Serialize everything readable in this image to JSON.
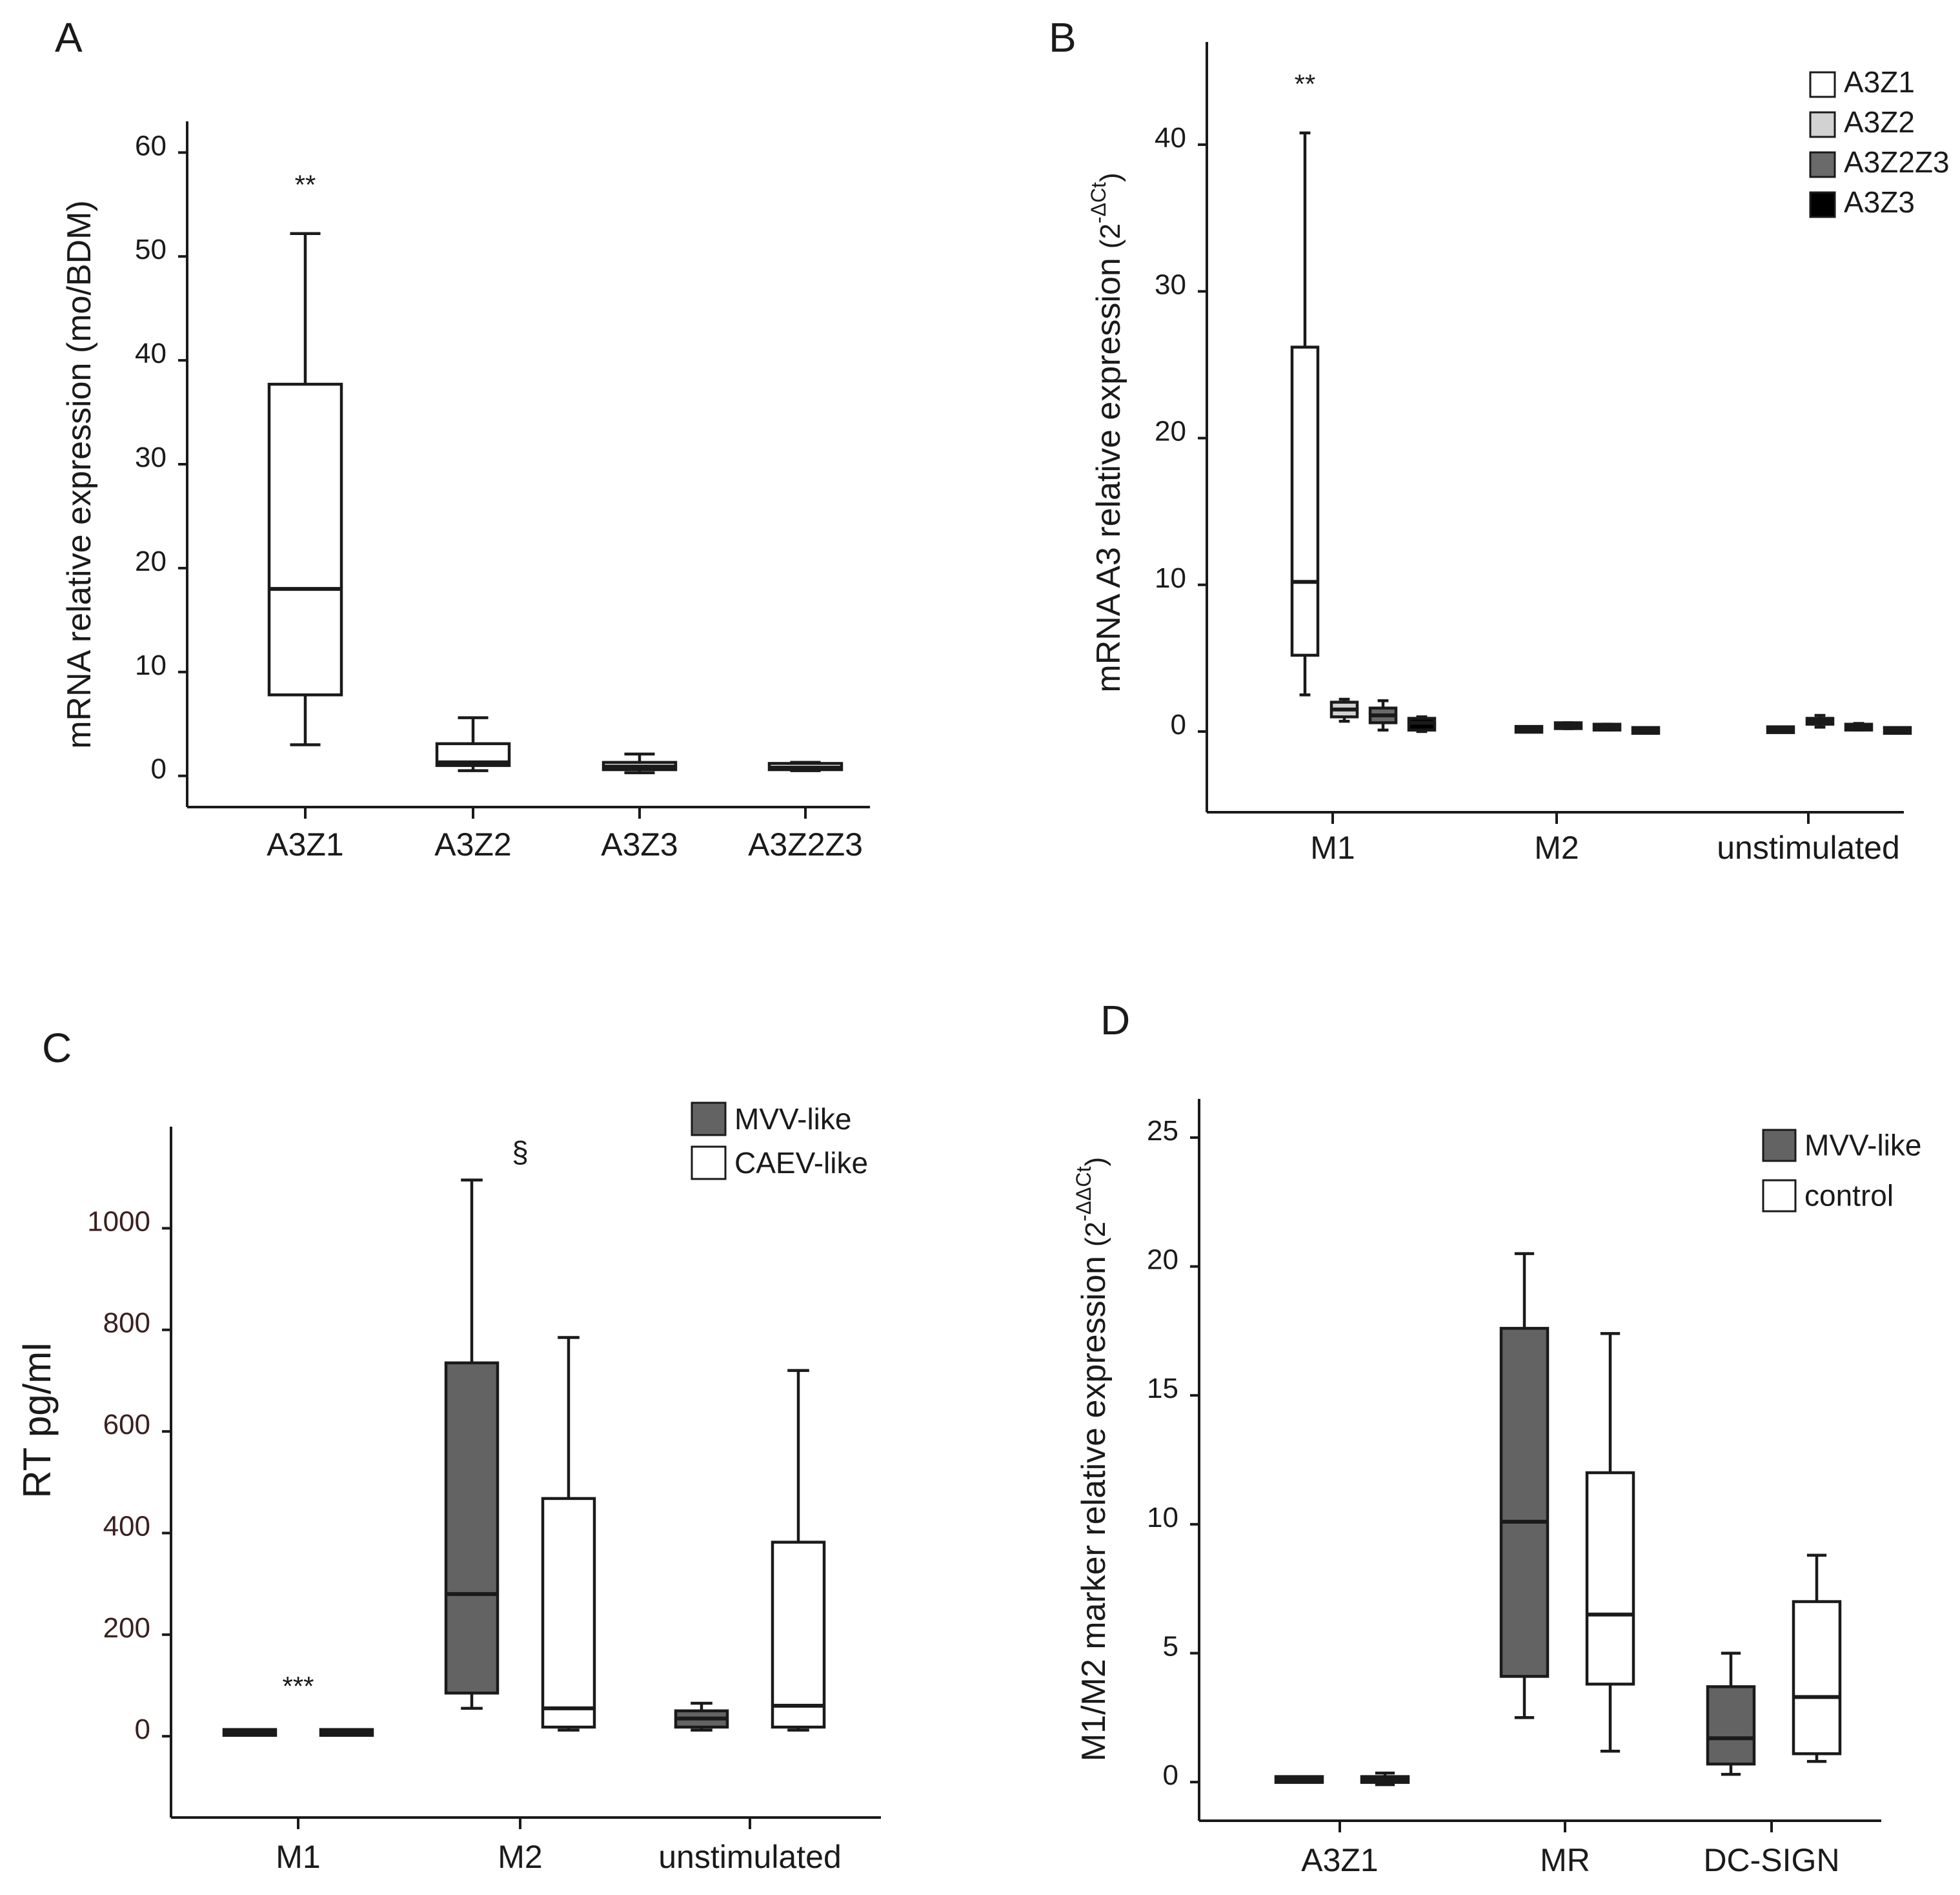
{
  "colors": {
    "A3Z1": "#ffffff",
    "A3Z2": "#d2d2d2",
    "A3Z2Z3": "#6a6a6a",
    "A3Z3": "#000000",
    "MVV-like": "#636363",
    "CAEV-like": "#ffffff",
    "control": "#ffffff"
  },
  "chart_data": [
    {
      "panel": "A",
      "type": "box",
      "ylabel": "mRNA relative expression (mo/BDM)",
      "ylim": [
        -3,
        63
      ],
      "yticks": [
        0,
        10,
        20,
        30,
        40,
        50,
        60
      ],
      "categories": [
        "A3Z1",
        "A3Z2",
        "A3Z3",
        "A3Z2Z3"
      ],
      "boxes": [
        {
          "cat": "A3Z1",
          "min": 3,
          "q1": 7.8,
          "median": 18,
          "q3": 37.7,
          "max": 52.2,
          "color": "A3Z1"
        },
        {
          "cat": "A3Z2",
          "min": 0.5,
          "q1": 1.0,
          "median": 1.3,
          "q3": 3.1,
          "max": 5.6,
          "color": "A3Z1"
        },
        {
          "cat": "A3Z3",
          "min": 0.3,
          "q1": 0.6,
          "median": 0.9,
          "q3": 1.3,
          "max": 2.1,
          "color": "A3Z1"
        },
        {
          "cat": "A3Z2Z3",
          "min": 0.5,
          "q1": 0.6,
          "median": 0.8,
          "q3": 1.2,
          "max": 1.3,
          "color": "A3Z1"
        }
      ],
      "annotations": [
        {
          "cat": "A3Z1",
          "text": "**",
          "y": 56
        }
      ]
    },
    {
      "panel": "B",
      "type": "box",
      "ylabel": "mRNA A3 relative expression",
      "ylabel_exp": "-ΔCt",
      "ylim": [
        -5.5,
        47
      ],
      "yticks": [
        0,
        10,
        20,
        30,
        40
      ],
      "categories": [
        "M1",
        "M2",
        "unstimulated"
      ],
      "legend": [
        "A3Z1",
        "A3Z2",
        "A3Z2Z3",
        "A3Z3"
      ],
      "boxes": [
        {
          "cat": "M1",
          "series": "A3Z1",
          "min": 2.5,
          "q1": 5.2,
          "median": 10.2,
          "q3": 26.2,
          "max": 40.8
        },
        {
          "cat": "M1",
          "series": "A3Z2",
          "min": 0.7,
          "q1": 1.0,
          "median": 1.5,
          "q3": 2.0,
          "max": 2.2
        },
        {
          "cat": "M1",
          "series": "A3Z2Z3",
          "min": 0.1,
          "q1": 0.6,
          "median": 1.1,
          "q3": 1.6,
          "max": 2.1
        },
        {
          "cat": "M1",
          "series": "A3Z3",
          "min": 0.0,
          "q1": 0.1,
          "median": 0.6,
          "q3": 0.9,
          "max": 1.0
        },
        {
          "cat": "M2",
          "series": "A3Z1",
          "min": 0.0,
          "q1": 0.05,
          "median": 0.15,
          "q3": 0.25,
          "max": 0.3
        },
        {
          "cat": "M2",
          "series": "A3Z2",
          "min": 0.2,
          "q1": 0.25,
          "median": 0.4,
          "q3": 0.55,
          "max": 0.6
        },
        {
          "cat": "M2",
          "series": "A3Z2Z3",
          "min": 0.1,
          "q1": 0.15,
          "median": 0.3,
          "q3": 0.45,
          "max": 0.5
        },
        {
          "cat": "M2",
          "series": "A3Z3",
          "min": 0.0,
          "q1": 0.0,
          "median": 0.1,
          "q3": 0.15,
          "max": 0.2
        },
        {
          "cat": "unstimulated",
          "series": "A3Z1",
          "min": 0.0,
          "q1": 0.05,
          "median": 0.1,
          "q3": 0.2,
          "max": 0.25
        },
        {
          "cat": "unstimulated",
          "series": "A3Z2",
          "min": 0.3,
          "q1": 0.5,
          "median": 0.7,
          "q3": 0.9,
          "max": 1.1
        },
        {
          "cat": "unstimulated",
          "series": "A3Z2Z3",
          "min": 0.1,
          "q1": 0.15,
          "median": 0.3,
          "q3": 0.45,
          "max": 0.55
        },
        {
          "cat": "unstimulated",
          "series": "A3Z3",
          "min": 0.0,
          "q1": 0.0,
          "median": 0.1,
          "q3": 0.15,
          "max": 0.2
        }
      ],
      "annotations": [
        {
          "cat": "M1",
          "series": "A3Z1",
          "text": "**",
          "y": 43.5
        }
      ]
    },
    {
      "panel": "C",
      "type": "box",
      "ylabel": "RT pg/ml",
      "ylim": [
        -160,
        1200
      ],
      "yticks": [
        0,
        200,
        400,
        600,
        800,
        1000
      ],
      "categories": [
        "M1",
        "M2",
        "unstimulated"
      ],
      "legend": [
        "MVV-like",
        "CAEV-like"
      ],
      "boxes": [
        {
          "cat": "M1",
          "series": "MVV-like",
          "min": 5,
          "q1": 5,
          "median": 8,
          "q3": 10,
          "max": 12
        },
        {
          "cat": "M1",
          "series": "CAEV-like",
          "min": 5,
          "q1": 5,
          "median": 8,
          "q3": 10,
          "max": 12
        },
        {
          "cat": "M2",
          "series": "MVV-like",
          "min": 55,
          "q1": 85,
          "median": 280,
          "q3": 735,
          "max": 1095
        },
        {
          "cat": "M2",
          "series": "CAEV-like",
          "min": 12,
          "q1": 18,
          "median": 55,
          "q3": 468,
          "max": 785
        },
        {
          "cat": "unstimulated",
          "series": "MVV-like",
          "min": 12,
          "q1": 18,
          "median": 35,
          "q3": 50,
          "max": 65
        },
        {
          "cat": "unstimulated",
          "series": "CAEV-like",
          "min": 12,
          "q1": 18,
          "median": 60,
          "q3": 382,
          "max": 720
        }
      ],
      "annotations": [
        {
          "cat": "M1",
          "text": "***",
          "y": 80
        },
        {
          "cat": "M2",
          "text": "§",
          "y": 1130
        }
      ]
    },
    {
      "panel": "D",
      "type": "box",
      "ylabel": "M1/M2 marker relative expression",
      "ylabel_exp": "-ΔΔCt",
      "ylim": [
        -1.5,
        26.5
      ],
      "yticks": [
        0,
        5,
        10,
        15,
        20,
        25
      ],
      "categories": [
        "A3Z1",
        "MR",
        "DC-SIGN"
      ],
      "legend": [
        "MVV-like",
        "control"
      ],
      "boxes": [
        {
          "cat": "A3Z1",
          "series": "MVV-like",
          "min": 0.0,
          "q1": 0.05,
          "median": 0.1,
          "q3": 0.15,
          "max": 0.2
        },
        {
          "cat": "A3Z1",
          "series": "control",
          "min": -0.1,
          "q1": 0.0,
          "median": 0.1,
          "q3": 0.2,
          "max": 0.35
        },
        {
          "cat": "MR",
          "series": "MVV-like",
          "min": 2.5,
          "q1": 4.1,
          "median": 10.1,
          "q3": 17.6,
          "max": 20.5
        },
        {
          "cat": "MR",
          "series": "control",
          "min": 1.2,
          "q1": 3.8,
          "median": 6.5,
          "q3": 12.0,
          "max": 17.4
        },
        {
          "cat": "DC-SIGN",
          "series": "MVV-like",
          "min": 0.3,
          "q1": 0.7,
          "median": 1.7,
          "q3": 3.7,
          "max": 5.0
        },
        {
          "cat": "DC-SIGN",
          "series": "control",
          "min": 0.8,
          "q1": 1.1,
          "median": 3.3,
          "q3": 7.0,
          "max": 8.8
        }
      ],
      "annotations": []
    }
  ]
}
